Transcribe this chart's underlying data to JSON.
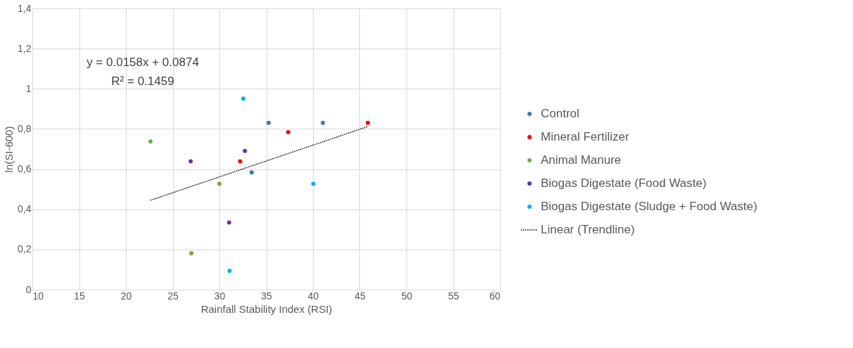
{
  "chart_data": {
    "type": "scatter",
    "xlabel": "Rainfall Stability Index (RSI)",
    "ylabel": "ln(SI-600)",
    "annotations": [
      "y = 0.0158x + 0.0874",
      "R² = 0.1459"
    ],
    "xlim": [
      10,
      60
    ],
    "xticks": [
      10,
      15,
      20,
      25,
      30,
      35,
      40,
      45,
      50,
      55,
      60
    ],
    "ylim": [
      0,
      1.4
    ],
    "yticks": [
      0,
      {
        "value": 0.2,
        "label": "0,2"
      },
      {
        "value": 0.4,
        "label": "0,4"
      },
      {
        "value": 0.6,
        "label": "0,6"
      },
      {
        "value": 0.8,
        "label": "0,8"
      },
      1,
      {
        "value": 1.2,
        "label": "1,2"
      },
      {
        "value": 1.4,
        "label": "1,4"
      }
    ],
    "grid": true,
    "legend": "right",
    "marker": "circle",
    "series": [
      {
        "name": "Control",
        "color": "#4472c4",
        "x": [
          35.26,
          41.06,
          33.45
        ],
        "values": [
          0.83,
          0.83,
          0.584
        ]
      },
      {
        "name": "Mineral Fertilizer",
        "color": "#ff0000",
        "x": [
          45.87,
          37.36,
          32.22
        ],
        "values": [
          0.83,
          0.784,
          0.639
        ]
      },
      {
        "name": "Animal Manure",
        "color": "#70ad47",
        "x": [
          22.63,
          30.0,
          27.0
        ],
        "values": [
          0.738,
          0.527,
          0.181
        ]
      },
      {
        "name": "Biogas Digestate (Food Waste)",
        "color": "#7030a0",
        "x": [
          26.93,
          32.72,
          31.04
        ],
        "values": [
          0.639,
          0.69,
          0.334
        ]
      },
      {
        "name": "Biogas Digestate (Sludge + Food Waste)",
        "color": "#00b0f0",
        "x": [
          32.56,
          40.04,
          31.09
        ],
        "values": [
          0.951,
          0.527,
          0.094
        ]
      },
      {
        "name": "Linear (Trendline)",
        "type": "line",
        "line_style": "dotted",
        "marker": "none",
        "color": "#000000",
        "x": [
          22.63,
          45.87
        ],
        "values": [
          0.445,
          0.812
        ]
      }
    ]
  }
}
